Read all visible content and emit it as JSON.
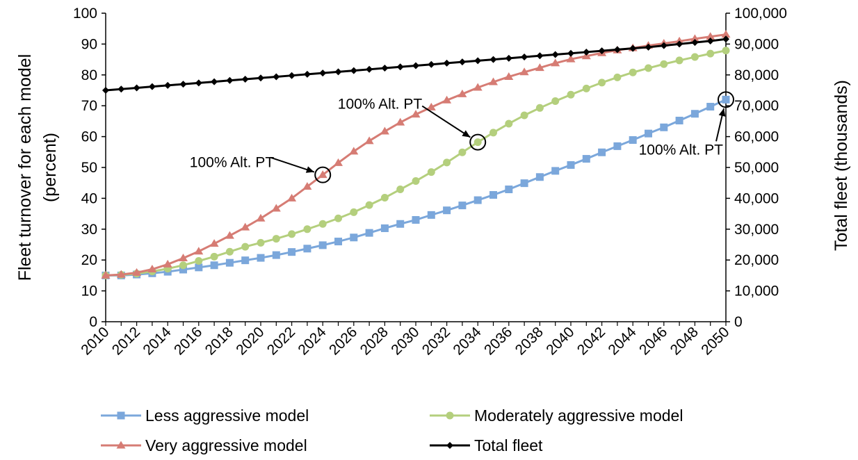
{
  "chart_data": {
    "type": "line",
    "x": [
      2010,
      2011,
      2012,
      2013,
      2014,
      2015,
      2016,
      2017,
      2018,
      2019,
      2020,
      2021,
      2022,
      2023,
      2024,
      2025,
      2026,
      2027,
      2028,
      2029,
      2030,
      2031,
      2032,
      2033,
      2034,
      2035,
      2036,
      2037,
      2038,
      2039,
      2040,
      2041,
      2042,
      2043,
      2044,
      2045,
      2046,
      2047,
      2048,
      2049,
      2050
    ],
    "x_tick_labels": [
      "2010",
      "2012",
      "2014",
      "2016",
      "2018",
      "2020",
      "2022",
      "2024",
      "2026",
      "2028",
      "2030",
      "2032",
      "2034",
      "2036",
      "2038",
      "2040",
      "2042",
      "2044",
      "2046",
      "2048",
      "2050"
    ],
    "ylabel": "Fleet turnover for each model (percent)",
    "ylabel_lines": [
      "Fleet turnover for each model",
      "(percent)"
    ],
    "y2label": "Total fleet (thousands)",
    "ylim": [
      0,
      100
    ],
    "y2lim": [
      0,
      100000
    ],
    "y_ticks": [
      "0",
      "10",
      "20",
      "30",
      "40",
      "50",
      "60",
      "70",
      "80",
      "90",
      "100"
    ],
    "y2_ticks": [
      "0",
      "10,000",
      "20,000",
      "30,000",
      "40,000",
      "50,000",
      "60,000",
      "70,000",
      "80,000",
      "90,000",
      "100,000"
    ],
    "legend_position": "bottom",
    "series": [
      {
        "name": "Less aggressive model",
        "axis": "left",
        "color": "#7BA7DB",
        "marker": "square",
        "values": [
          15,
          15,
          15.3,
          15.7,
          16.2,
          16.9,
          17.6,
          18.3,
          19.1,
          19.9,
          20.7,
          21.6,
          22.6,
          23.7,
          24.8,
          26.0,
          27.3,
          28.8,
          30.3,
          31.7,
          33.0,
          34.6,
          36.1,
          37.7,
          39.4,
          41.1,
          42.9,
          44.9,
          46.9,
          48.9,
          50.8,
          52.8,
          54.9,
          56.9,
          58.9,
          61.0,
          63.0,
          65.2,
          67.4,
          69.7,
          72.0
        ]
      },
      {
        "name": "Moderately aggressive model",
        "axis": "left",
        "color": "#B4CF7D",
        "marker": "circle",
        "values": [
          15,
          15.2,
          15.6,
          16.3,
          17.2,
          18.3,
          19.7,
          21.1,
          22.7,
          24.3,
          25.6,
          26.9,
          28.4,
          30.0,
          31.7,
          33.5,
          35.5,
          37.8,
          40.2,
          42.9,
          45.6,
          48.5,
          51.6,
          54.9,
          58.2,
          61.3,
          64.2,
          66.9,
          69.3,
          71.5,
          73.6,
          75.6,
          77.5,
          79.2,
          80.8,
          82.2,
          83.5,
          84.7,
          85.8,
          86.9,
          87.9
        ]
      },
      {
        "name": "Very aggressive model",
        "axis": "left",
        "color": "#D67C74",
        "marker": "triangle",
        "values": [
          15,
          15.3,
          15.9,
          17.0,
          18.6,
          20.6,
          22.8,
          25.3,
          27.9,
          30.6,
          33.5,
          36.7,
          40.0,
          43.8,
          47.6,
          51.5,
          55.2,
          58.6,
          61.7,
          64.6,
          67.2,
          69.5,
          71.8,
          73.8,
          75.9,
          77.7,
          79.4,
          80.9,
          82.3,
          83.8,
          85.1,
          86.1,
          87.1,
          88.0,
          88.7,
          89.5,
          90.2,
          90.9,
          91.7,
          92.4,
          93.1
        ]
      },
      {
        "name": "Total fleet",
        "axis": "right",
        "color": "#000000",
        "marker": "diamond",
        "values": [
          75000,
          75400,
          75800,
          76200,
          76600,
          77000,
          77400,
          77800,
          78200,
          78600,
          79000,
          79400,
          79800,
          80200,
          80600,
          81000,
          81400,
          81800,
          82200,
          82600,
          83000,
          83400,
          83800,
          84200,
          84600,
          85000,
          85400,
          85800,
          86200,
          86600,
          87000,
          87400,
          87800,
          88200,
          88600,
          89000,
          89500,
          90000,
          90500,
          91000,
          91600
        ]
      }
    ],
    "annotations": [
      {
        "text": "100% Alt. PT",
        "series": "Very aggressive model",
        "x": 2024,
        "y": 47.6
      },
      {
        "text": "100% Alt. PT",
        "series": "Moderately aggressive model",
        "x": 2034,
        "y": 58.2
      },
      {
        "text": "100% Alt. PT",
        "series": "Less aggressive model",
        "x": 2050,
        "y": 72.0
      }
    ]
  }
}
